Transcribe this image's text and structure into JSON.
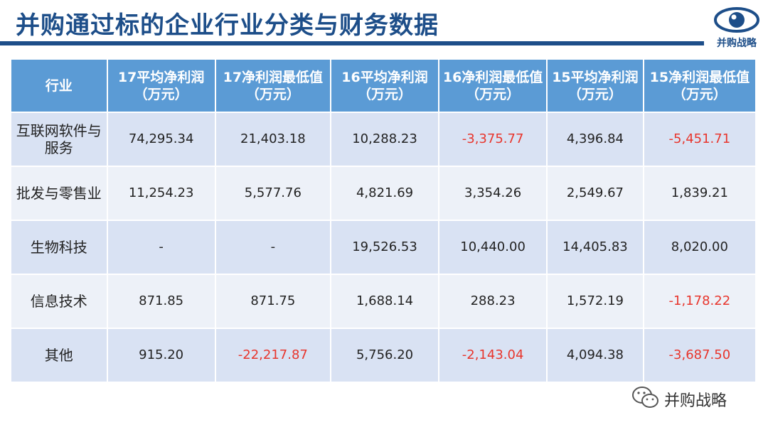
{
  "page": {
    "title": "并购通过标的企业行业分类与财务数据"
  },
  "logo": {
    "text": "并购战略"
  },
  "table": {
    "headers": [
      "行业",
      "17平均净利润（万元）",
      "17净利润最低值（万元）",
      "16平均净利润（万元）",
      "16净利润最低值（万元）",
      "15平均净利润（万元）",
      "15净利润最低值（万元）"
    ],
    "rows": [
      {
        "cells": [
          "互联网软件与服务",
          "74,295.34",
          "21,403.18",
          "10,288.23",
          "-3,375.77",
          "4,396.84",
          "-5,451.71"
        ]
      },
      {
        "cells": [
          "批发与零售业",
          "11,254.23",
          "5,577.76",
          "4,821.69",
          "3,354.26",
          "2,549.67",
          "1,839.21"
        ]
      },
      {
        "cells": [
          "生物科技",
          "-",
          "-",
          "19,526.53",
          "10,440.00",
          "14,405.83",
          "8,020.00"
        ]
      },
      {
        "cells": [
          "信息技术",
          "871.85",
          "871.75",
          "1,688.14",
          "288.23",
          "1,572.19",
          "-1,178.22"
        ]
      },
      {
        "cells": [
          "其他",
          "915.20",
          "-22,217.87",
          "5,756.20",
          "-2,143.04",
          "4,094.38",
          "-3,687.50"
        ]
      }
    ]
  },
  "colors": {
    "accent": "#1d4e89",
    "header_bg": "#5b9bd5",
    "negative": "#e8352c"
  },
  "watermark": {
    "icon": "wechat-icon",
    "text": "并购战略"
  }
}
